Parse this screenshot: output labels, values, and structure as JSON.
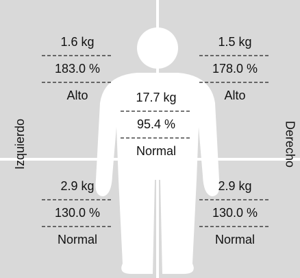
{
  "quadrants": [
    {
      "mass": "1.6 kg",
      "percent": "183.0 %",
      "rating": "Alto"
    },
    {
      "mass": "1.5 kg",
      "percent": "178.0 %",
      "rating": "Alto"
    },
    {
      "mass": "2.9 kg",
      "percent": "130.0 %",
      "rating": "Normal"
    },
    {
      "mass": "2.9 kg",
      "percent": "130.0 %",
      "rating": "Normal"
    }
  ],
  "trunk": {
    "mass": "17.7 kg",
    "percent": "95.4 %",
    "rating": "Normal"
  },
  "side_labels": {
    "left": "Izquierdo",
    "right": "Derecho"
  }
}
